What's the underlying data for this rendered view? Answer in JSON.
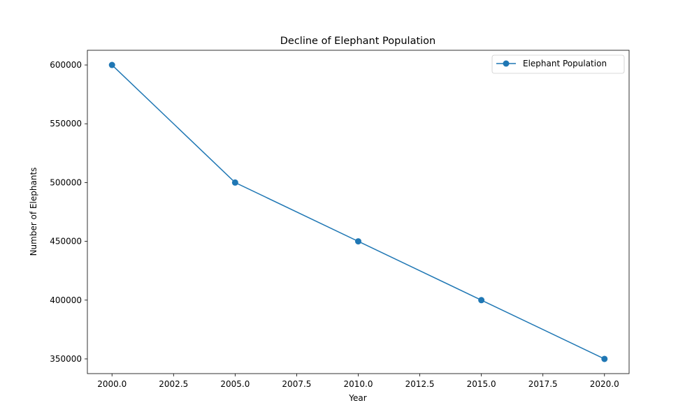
{
  "chart_data": {
    "type": "line",
    "title": "Decline of Elephant Population",
    "xlabel": "Year",
    "ylabel": "Number of Elephants",
    "x": [
      2000,
      2005,
      2010,
      2015,
      2020
    ],
    "series": [
      {
        "name": "Elephant Population",
        "values": [
          600000,
          500000,
          450000,
          400000,
          350000
        ]
      }
    ],
    "xlim": [
      1999,
      2021
    ],
    "ylim": [
      337500,
      612500
    ],
    "x_ticks": [
      2000.0,
      2002.5,
      2005.0,
      2007.5,
      2010.0,
      2012.5,
      2015.0,
      2017.5,
      2020.0
    ],
    "x_tick_labels": [
      "2000.0",
      "2002.5",
      "2005.0",
      "2007.5",
      "2010.0",
      "2012.5",
      "2015.0",
      "2017.5",
      "2020.0"
    ],
    "y_ticks": [
      350000,
      400000,
      450000,
      500000,
      550000,
      600000
    ],
    "y_tick_labels": [
      "350000",
      "400000",
      "450000",
      "500000",
      "550000",
      "600000"
    ],
    "grid": false,
    "legend_position": "top-right",
    "line_color": "#1f77b4",
    "marker": "circle"
  }
}
